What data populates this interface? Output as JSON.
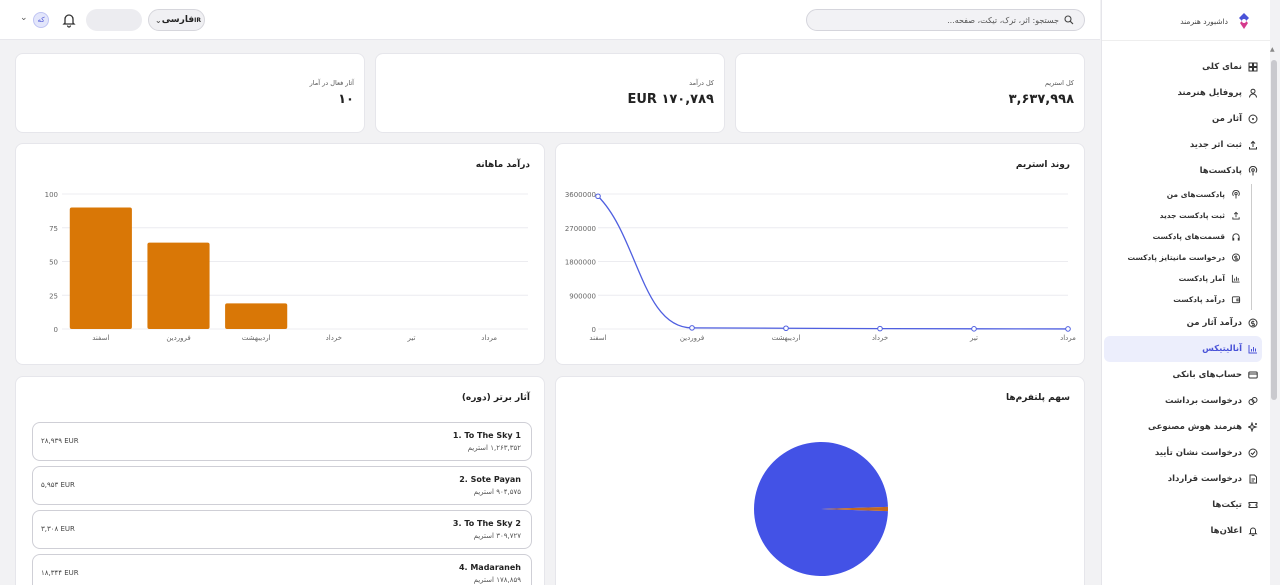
{
  "topbar": {
    "search_placeholder": "جستجو: اثر، ترک، تیکت، صفحه...",
    "lang_code": "IR",
    "lang_label": "فارسی",
    "avatar_initial": "که"
  },
  "sidebar": {
    "brand": "داشبورد هنرمند",
    "items": [
      {
        "label": "نمای کلی",
        "icon": "grid-icon"
      },
      {
        "label": "پروفایل هنرمند",
        "icon": "user-icon"
      },
      {
        "label": "آثار من",
        "icon": "music-disc-icon"
      },
      {
        "label": "ثبت اثر جدید",
        "icon": "upload-icon"
      },
      {
        "label": "پادکست‌ها",
        "icon": "podcast-icon"
      }
    ],
    "podcast_sub": [
      {
        "label": "پادکست‌های من",
        "icon": "podcast-icon"
      },
      {
        "label": "ثبت پادکست جدید",
        "icon": "upload-icon"
      },
      {
        "label": "قسمت‌های پادکست",
        "icon": "headphones-icon"
      },
      {
        "label": "درخواست مانیتایز پادکست",
        "icon": "dollar-icon"
      },
      {
        "label": "آمار پادکست",
        "icon": "bar-chart-icon"
      },
      {
        "label": "درآمد پادکست",
        "icon": "wallet-icon"
      }
    ],
    "items_after": [
      {
        "label": "درآمد آثار من",
        "icon": "dollar-icon"
      },
      {
        "label": "آنالیتیکس",
        "icon": "bar-chart-icon",
        "active": true
      },
      {
        "label": "حساب‌های بانکی",
        "icon": "card-icon"
      },
      {
        "label": "درخواست برداشت",
        "icon": "coins-icon"
      },
      {
        "label": "هنرمند هوش مصنوعی",
        "icon": "sparkle-icon"
      },
      {
        "label": "درخواست نشان تأیید",
        "icon": "check-circle-icon"
      },
      {
        "label": "درخواست قرارداد",
        "icon": "contract-icon"
      },
      {
        "label": "تیکت‌ها",
        "icon": "ticket-icon"
      },
      {
        "label": "اعلان‌ها",
        "icon": "bell-icon"
      }
    ]
  },
  "stats": [
    {
      "label": "کل استریم",
      "value": "۳,۶۳۷,۹۹۸"
    },
    {
      "label": "کل درآمد",
      "value": "EUR ۱۷۰,۷۸۹"
    },
    {
      "label": "آثار فعال در آمار",
      "value": "۱۰"
    }
  ],
  "colors": {
    "accent": "#4a53d8",
    "bar": "#d97706",
    "line": "#4f5fe0",
    "pie_main": "#4352e6",
    "pie_slice": "#c2691f"
  },
  "charts": {
    "streams_title": "روند استریم",
    "revenue_title": "درآمد ماهانه",
    "platform_title": "سهم پلتفرم‌ها"
  },
  "chart_data": [
    {
      "type": "line",
      "title": "روند استریم",
      "categories": [
        "اسفند",
        "فروردین",
        "اردیبهشت",
        "خرداد",
        "تیر",
        "مرداد"
      ],
      "values": [
        3540000,
        30000,
        20000,
        10000,
        5000,
        2000
      ],
      "yticks": [
        "0",
        "900000",
        "1800000",
        "2700000",
        "3600000"
      ],
      "ylim": [
        0,
        3600000
      ]
    },
    {
      "type": "bar",
      "title": "درآمد ماهانه",
      "categories": [
        "اسفند",
        "فروردین",
        "اردیبهشت",
        "خرداد",
        "تیر",
        "مرداد"
      ],
      "values": [
        90,
        64,
        19,
        0,
        0,
        0
      ],
      "yticks": [
        "0",
        "25",
        "50",
        "75",
        "100"
      ],
      "ylim": [
        0,
        100
      ]
    },
    {
      "type": "pie",
      "title": "سهم پلتفرم‌ها",
      "values": [
        99,
        1
      ]
    }
  ],
  "top_tracks": {
    "title": "آثار برتر (دوره)",
    "items": [
      {
        "name": "1. To The Sky 1",
        "streams": "۱,۲۶۳,۳۵۲ استریم",
        "revenue": "۲۸,۹۳۹ EUR"
      },
      {
        "name": "2. Sote Payan",
        "streams": "۹۰۴,۵۷۵ استریم",
        "revenue": "۵,۹۵۳ EUR"
      },
      {
        "name": "3. To The Sky 2",
        "streams": "۳۰۹,۷۲۷ استریم",
        "revenue": "۳,۳۰۸ EUR"
      },
      {
        "name": "4. Madaraneh",
        "streams": "۱۷۸,۸۵۹ استریم",
        "revenue": "۱۸,۳۴۴ EUR"
      }
    ]
  }
}
